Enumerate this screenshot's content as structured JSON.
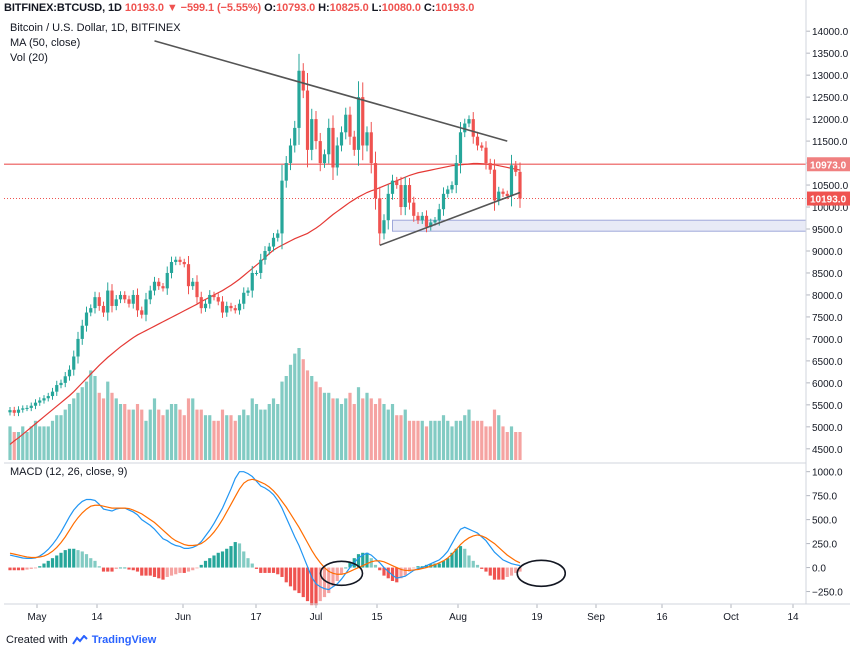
{
  "header": {
    "symbol": "BITFINEX:BTCUSD, 1D",
    "last": "10193.0",
    "change_arrow": "▼",
    "change": "−599.1 (−5.55%)",
    "o_label": "O:",
    "o": "10793.0",
    "h_label": "H:",
    "h": "10825.0",
    "l_label": "L:",
    "l": "10080.0",
    "c_label": "C:",
    "c": "10193.0"
  },
  "legends": {
    "title": "Bitcoin / U.S. Dollar, 1D, BITFINEX",
    "ma": "MA (50, close)",
    "vol": "Vol (20)",
    "macd": "MACD (12, 26, close, 9)"
  },
  "footer": {
    "prefix": "Created with",
    "brand": "TradingView"
  },
  "colors": {
    "up": "#26a69a",
    "down": "#ef5350",
    "up_vol": "#82cbc3",
    "down_vol": "#f5a3a1",
    "ma": "#e53935",
    "macd_line": "#2196f3",
    "signal_line": "#ff6d00",
    "trendline": "#555555",
    "hline": "#f08080",
    "zone_fill": "#e8eaf6"
  },
  "chart_data": [
    {
      "type": "candlestick",
      "title": "Bitcoin / U.S. Dollar, 1D, BITFINEX",
      "x_ticks": [
        "May",
        "14",
        "Jun",
        "17",
        "Jul",
        "15",
        "Aug",
        "19",
        "Sep",
        "16",
        "Oct",
        "14"
      ],
      "y_ticks": [
        4500,
        5000,
        5500,
        6000,
        6500,
        7000,
        7500,
        8000,
        8500,
        9000,
        9500,
        10000,
        10500,
        11000,
        11500,
        12000,
        12500,
        13000,
        13500,
        14000
      ],
      "y_tick_labels": [
        "4500.0",
        "5000.0",
        "5500.0",
        "6000.0",
        "6500.0",
        "7000.0",
        "7500.0",
        "8000.0",
        "8500.0",
        "9000.0",
        "9500.0",
        "10000.0",
        "10500.0",
        "11000.0",
        "11500.0",
        "12000.0",
        "12500.0",
        "13000.0",
        "13500.0",
        "14000.0"
      ],
      "ylim": [
        4200,
        14300
      ],
      "price_labels": [
        {
          "text": "10973.0",
          "value": 10973
        },
        {
          "text": "10193.0",
          "value": 10193
        }
      ],
      "close_series": [
        5380,
        5320,
        5390,
        5420,
        5430,
        5480,
        5550,
        5600,
        5650,
        5700,
        5800,
        5950,
        6000,
        6150,
        6300,
        6600,
        7000,
        7300,
        7600,
        7700,
        7950,
        7750,
        7600,
        8100,
        7750,
        7900,
        8000,
        7900,
        7800,
        8000,
        7650,
        7550,
        7900,
        8100,
        8300,
        8200,
        8150,
        8500,
        8750,
        8800,
        8750,
        8700,
        8200,
        8300,
        7950,
        7700,
        7800,
        8000,
        7950,
        7850,
        7600,
        7750,
        7700,
        7650,
        7800,
        8050,
        8100,
        8500,
        8500,
        8800,
        9000,
        9100,
        9300,
        9400,
        10600,
        11000,
        11400,
        11800,
        13100,
        12650,
        11300,
        12000,
        11500,
        11000,
        11200,
        11800,
        10900,
        11400,
        11700,
        12100,
        11600,
        11300,
        12500,
        11400,
        11700,
        11000,
        10200,
        9400,
        9700,
        10300,
        10600,
        10500,
        10000,
        10500,
        10100,
        9800,
        9700,
        9800,
        9550,
        9650,
        9700,
        9950,
        10300,
        10400,
        10500,
        11000,
        11700,
        11900,
        12000,
        11600,
        11400,
        11350,
        11000,
        10850,
        10150,
        10350,
        10300,
        10250,
        10950,
        10800,
        10193
      ],
      "ma50_series": [
        4600,
        4680,
        4750,
        4830,
        4910,
        4990,
        5070,
        5150,
        5230,
        5310,
        5390,
        5470,
        5550,
        5630,
        5710,
        5800,
        5900,
        6000,
        6100,
        6200,
        6300,
        6400,
        6490,
        6580,
        6660,
        6740,
        6820,
        6890,
        6960,
        7030,
        7090,
        7140,
        7190,
        7240,
        7290,
        7340,
        7390,
        7440,
        7490,
        7540,
        7590,
        7640,
        7690,
        7740,
        7790,
        7850,
        7900,
        7950,
        8000,
        8050,
        8100,
        8160,
        8220,
        8290,
        8360,
        8440,
        8520,
        8600,
        8680,
        8760,
        8850,
        8940,
        9020,
        9080,
        9130,
        9180,
        9230,
        9280,
        9320,
        9360,
        9400,
        9460,
        9520,
        9590,
        9670,
        9750,
        9830,
        9900,
        9970,
        10040,
        10110,
        10170,
        10230,
        10280,
        10330,
        10370,
        10400,
        10440,
        10480,
        10520,
        10560,
        10600,
        10640,
        10680,
        10720,
        10750,
        10780,
        10800,
        10820,
        10840,
        10860,
        10880,
        10900,
        10920,
        10940,
        10950,
        10960,
        10970,
        10980,
        10990,
        10990,
        10985,
        10980,
        10970,
        10960,
        10940,
        10920,
        10900,
        10880,
        10860,
        10840
      ],
      "volume_relative": [
        0.3,
        0.25,
        0.25,
        0.3,
        0.25,
        0.3,
        0.35,
        0.3,
        0.3,
        0.3,
        0.35,
        0.4,
        0.4,
        0.45,
        0.5,
        0.55,
        0.6,
        0.65,
        0.7,
        0.8,
        0.75,
        0.6,
        0.55,
        0.7,
        0.6,
        0.55,
        0.5,
        0.5,
        0.45,
        0.45,
        0.5,
        0.45,
        0.35,
        0.45,
        0.55,
        0.45,
        0.4,
        0.45,
        0.5,
        0.5,
        0.45,
        0.4,
        0.55,
        0.55,
        0.45,
        0.45,
        0.4,
        0.4,
        0.35,
        0.35,
        0.45,
        0.4,
        0.4,
        0.35,
        0.4,
        0.45,
        0.4,
        0.55,
        0.5,
        0.45,
        0.45,
        0.5,
        0.55,
        0.5,
        0.7,
        0.75,
        0.85,
        0.95,
        1.0,
        0.9,
        0.8,
        0.75,
        0.7,
        0.65,
        0.6,
        0.6,
        0.55,
        0.55,
        0.5,
        0.55,
        0.6,
        0.5,
        0.65,
        0.55,
        0.6,
        0.55,
        0.5,
        0.55,
        0.5,
        0.45,
        0.5,
        0.4,
        0.4,
        0.45,
        0.35,
        0.35,
        0.35,
        0.35,
        0.3,
        0.35,
        0.35,
        0.35,
        0.4,
        0.35,
        0.3,
        0.35,
        0.35,
        0.4,
        0.45,
        0.35,
        0.35,
        0.35,
        0.3,
        0.3,
        0.45,
        0.4,
        0.3,
        0.25,
        0.3,
        0.25,
        0.25
      ],
      "trendlines": [
        {
          "from": [
            34,
            13780
          ],
          "to": [
            117,
            11500
          ]
        },
        {
          "from": [
            87,
            9130
          ],
          "to": [
            120,
            10330
          ]
        }
      ],
      "horizontal_line": 10973,
      "support_zone": [
        9450,
        9700
      ]
    },
    {
      "type": "macd",
      "title": "MACD (12, 26, close, 9)",
      "y_ticks": [
        -250,
        0,
        250,
        500,
        750,
        1000
      ],
      "y_tick_labels": [
        "−250.0",
        "0.0",
        "250.0",
        "500.0",
        "750.0",
        "1000.0"
      ],
      "ylim": [
        -380,
        1080
      ],
      "macd_series": [
        130,
        120,
        110,
        100,
        95,
        95,
        100,
        120,
        150,
        190,
        240,
        300,
        370,
        450,
        530,
        600,
        650,
        690,
        710,
        710,
        700,
        660,
        610,
        600,
        590,
        610,
        620,
        620,
        600,
        580,
        550,
        500,
        470,
        440,
        400,
        350,
        300,
        280,
        250,
        230,
        220,
        200,
        200,
        210,
        230,
        270,
        330,
        390,
        460,
        540,
        620,
        720,
        820,
        930,
        1000,
        1000,
        980,
        950,
        900,
        850,
        830,
        800,
        760,
        700,
        620,
        520,
        420,
        320,
        230,
        120,
        10,
        -100,
        -170,
        -200,
        -220,
        -230,
        -200,
        -170,
        -120,
        -60,
        0,
        50,
        100,
        130,
        150,
        130,
        90,
        50,
        0,
        -40,
        -80,
        -110,
        -100,
        -90,
        -60,
        -30,
        -10,
        0,
        20,
        40,
        60,
        80,
        120,
        170,
        250,
        330,
        400,
        420,
        400,
        380,
        360,
        320,
        280,
        220,
        160,
        120,
        80,
        60,
        40,
        30,
        20
      ],
      "signal_series": [
        150,
        140,
        130,
        120,
        110,
        105,
        105,
        110,
        120,
        140,
        170,
        210,
        260,
        320,
        390,
        460,
        520,
        570,
        610,
        640,
        650,
        650,
        640,
        630,
        620,
        620,
        620,
        620,
        615,
        600,
        580,
        560,
        530,
        500,
        470,
        430,
        390,
        350,
        310,
        280,
        260,
        240,
        230,
        230,
        235,
        250,
        280,
        320,
        370,
        430,
        500,
        580,
        660,
        740,
        820,
        880,
        910,
        920,
        910,
        890,
        870,
        840,
        800,
        750,
        690,
        630,
        560,
        490,
        420,
        340,
        260,
        180,
        110,
        50,
        0,
        -40,
        -60,
        -70,
        -70,
        -60,
        -40,
        -20,
        0,
        20,
        40,
        60,
        70,
        70,
        60,
        40,
        20,
        0,
        -20,
        -30,
        -30,
        -25,
        -20,
        -10,
        0,
        15,
        30,
        50,
        70,
        100,
        140,
        190,
        240,
        280,
        310,
        330,
        340,
        330,
        310,
        280,
        250,
        210,
        170,
        130,
        100,
        70,
        50
      ],
      "annotations": [
        "circle-around-early-jul-histogram",
        "circle-around-aug-19-histogram"
      ]
    }
  ]
}
